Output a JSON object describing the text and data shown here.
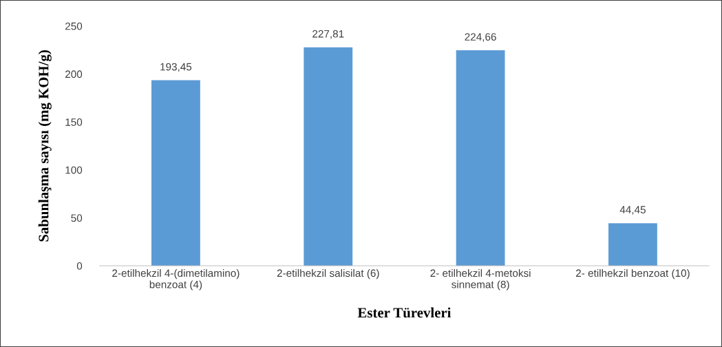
{
  "chart_data": {
    "type": "bar",
    "xlabel": "Ester Türevleri",
    "ylabel": "Sabunlaşma sayısı (mg KOH/g)",
    "categories": [
      "2-etilhekzil 4-(dimetilamino)\nbenzoat (4)",
      "2-etilhekzil salisilat (6)",
      "2- etilhekzil 4-metoksi\nsinnemat (8)",
      "2- etilhekzil benzoat (10)"
    ],
    "values": [
      193.45,
      227.81,
      224.66,
      44.45
    ],
    "value_labels": [
      "193,45",
      "227,81",
      "224,66",
      "44,45"
    ],
    "color": "#5b9bd5",
    "ylim": [
      0,
      250
    ],
    "yticks": [
      0,
      50,
      100,
      150,
      200,
      250
    ],
    "grid": false
  }
}
